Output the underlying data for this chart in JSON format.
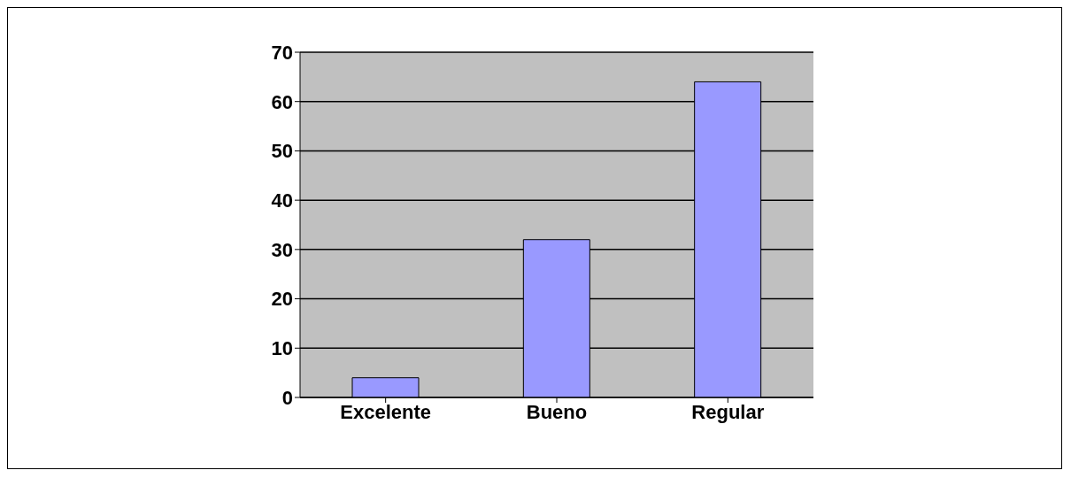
{
  "chart_data": {
    "type": "bar",
    "categories": [
      "Excelente",
      "Bueno",
      "Regular"
    ],
    "values": [
      4,
      32,
      64
    ],
    "color": "#9999ff",
    "ylim": [
      0,
      70
    ],
    "yticks": [
      0,
      10,
      20,
      30,
      40,
      50,
      60,
      70
    ],
    "grid": "y"
  }
}
